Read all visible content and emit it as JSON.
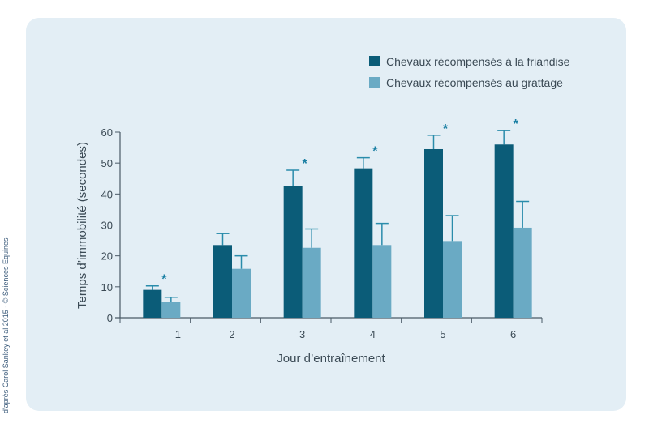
{
  "credit": "d'après Carol Sankey et al 2015 - © Sciences Équines",
  "chart_data": {
    "type": "bar",
    "xlabel": "Jour d’entraînement",
    "ylabel": "Temps d’immobilité (secondes)",
    "categories": [
      "1",
      "2",
      "3",
      "4",
      "5",
      "6"
    ],
    "ylim": [
      0,
      60
    ],
    "yticks": [
      0,
      10,
      20,
      30,
      40,
      50,
      60
    ],
    "legend_position": "top-right",
    "grid": false,
    "series": [
      {
        "name": "Chevaux récompensés à la friandise",
        "color": "#0b5c78",
        "values": [
          9,
          23.5,
          42.7,
          48.3,
          54.5,
          56
        ],
        "error_upper": [
          10.3,
          27.2,
          47.7,
          51.7,
          59,
          60.5
        ]
      },
      {
        "name": "Chevaux récompensés au grattage",
        "color": "#6aaac4",
        "values": [
          5.2,
          15.8,
          22.6,
          23.5,
          24.8,
          29.1
        ],
        "error_upper": [
          6.6,
          20,
          28.7,
          30.5,
          33,
          37.6
        ]
      }
    ],
    "significance": [
      "*",
      "",
      "*",
      "*",
      "*",
      "*"
    ],
    "significance_days": [
      "1",
      "3",
      "4",
      "5",
      "6"
    ]
  }
}
